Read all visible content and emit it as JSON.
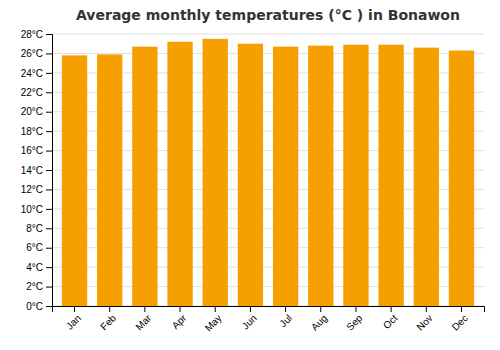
{
  "chart_data": {
    "type": "bar",
    "title": "Average monthly temperatures (°C ) in Bonawon",
    "categories": [
      "Jan",
      "Feb",
      "Mar",
      "Apr",
      "May",
      "Jun",
      "Jul",
      "Aug",
      "Sep",
      "Oct",
      "Nov",
      "Dec"
    ],
    "values": [
      25.8,
      25.9,
      26.7,
      27.2,
      27.5,
      27.0,
      26.7,
      26.8,
      26.9,
      26.9,
      26.6,
      26.3
    ],
    "color": "#F5A000",
    "ylim": [
      0,
      28
    ],
    "yticks": [
      {
        "value": 0,
        "label": "0°C"
      },
      {
        "value": 2,
        "label": "2°C"
      },
      {
        "value": 4,
        "label": "4°C"
      },
      {
        "value": 6,
        "label": "6°C"
      },
      {
        "value": 8,
        "label": "8°C"
      },
      {
        "value": 10,
        "label": "10°C"
      },
      {
        "value": 12,
        "label": "12°C"
      },
      {
        "value": 14,
        "label": "14°C"
      },
      {
        "value": 16,
        "label": "16°C"
      },
      {
        "value": 18,
        "label": "18°C"
      },
      {
        "value": 20,
        "label": "20°C"
      },
      {
        "value": 22,
        "label": "22°C"
      },
      {
        "value": 24,
        "label": "24°C"
      },
      {
        "value": 26,
        "label": "26°C"
      },
      {
        "value": 28,
        "label": "28°C"
      }
    ],
    "grid": true
  }
}
